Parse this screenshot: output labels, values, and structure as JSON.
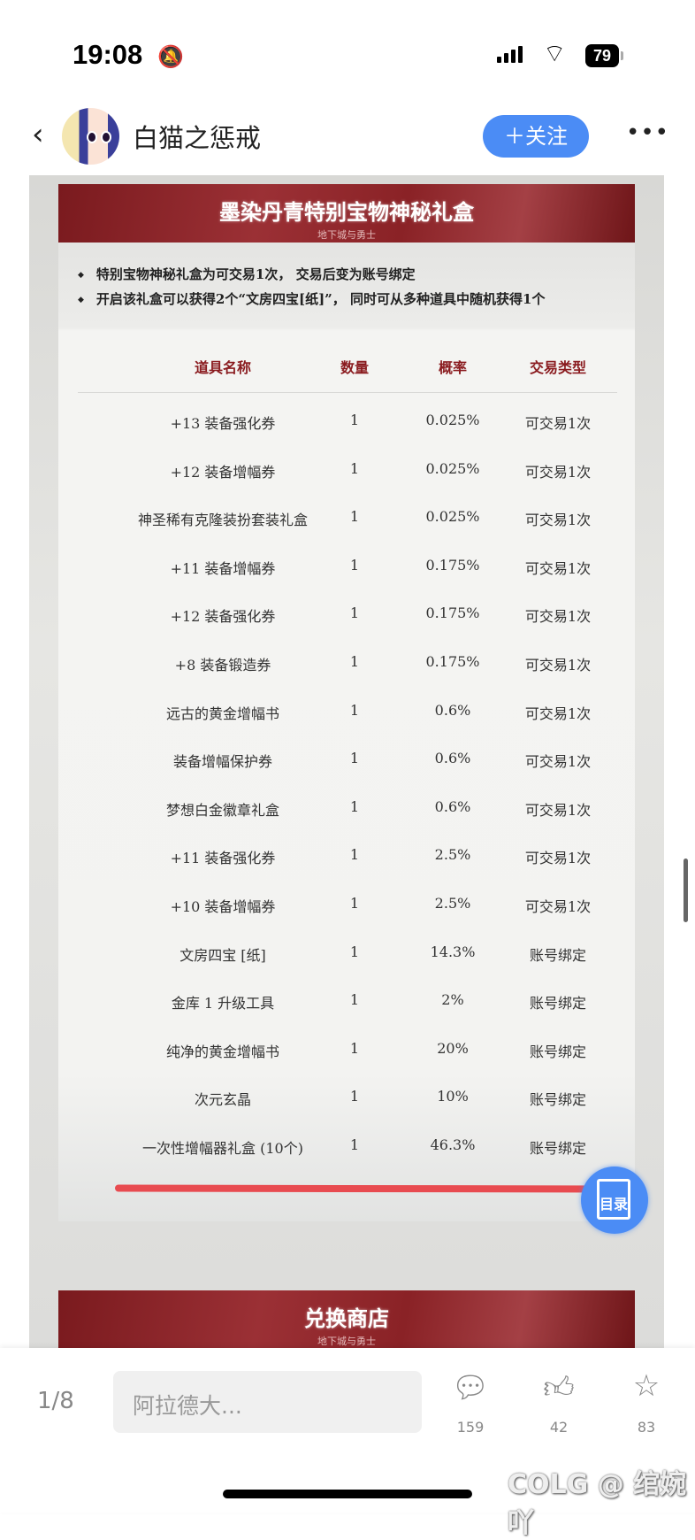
{
  "status_bar": {
    "time": "19:08",
    "battery": "79"
  },
  "header": {
    "author": "白猫之惩戒",
    "follow_label": "＋关注"
  },
  "article": {
    "section1": {
      "title": "墨染丹青特别宝物神秘礼盒",
      "subtitle": "地下城与勇士",
      "bullets": [
        "特别宝物神秘礼盒为可交易1次， 交易后变为账号绑定",
        "开启该礼盒可以获得2个“文房四宝[纸]”， 同时可从多种道具中随机获得1个"
      ]
    },
    "table": {
      "headers": [
        "道具名称",
        "数量",
        "概率",
        "交易类型"
      ],
      "rows": [
        [
          "+13 装备强化券",
          "1",
          "0.025%",
          "可交易1次"
        ],
        [
          "+12 装备增幅券",
          "1",
          "0.025%",
          "可交易1次"
        ],
        [
          "神圣稀有克隆装扮套装礼盒",
          "1",
          "0.025%",
          "可交易1次"
        ],
        [
          "+11 装备增幅券",
          "1",
          "0.175%",
          "可交易1次"
        ],
        [
          "+12 装备强化券",
          "1",
          "0.175%",
          "可交易1次"
        ],
        [
          "+8 装备锻造券",
          "1",
          "0.175%",
          "可交易1次"
        ],
        [
          "远古的黄金增幅书",
          "1",
          "0.6%",
          "可交易1次"
        ],
        [
          "装备增幅保护券",
          "1",
          "0.6%",
          "可交易1次"
        ],
        [
          "梦想白金徽章礼盒",
          "1",
          "0.6%",
          "可交易1次"
        ],
        [
          "+11 装备强化券",
          "1",
          "2.5%",
          "可交易1次"
        ],
        [
          "+10 装备增幅券",
          "1",
          "2.5%",
          "可交易1次"
        ],
        [
          "文房四宝 [纸]",
          "1",
          "14.3%",
          "账号绑定"
        ],
        [
          "金库 1 升级工具",
          "1",
          "2%",
          "账号绑定"
        ],
        [
          "纯净的黄金增幅书",
          "1",
          "20%",
          "账号绑定"
        ],
        [
          "次元玄晶",
          "1",
          "10%",
          "账号绑定"
        ],
        [
          "一次性增幅器礼盒 (10个)",
          "1",
          "46.3%",
          "账号绑定"
        ]
      ]
    },
    "section2": {
      "title": "兑换商店",
      "subtitle": "地下城与勇士"
    },
    "toc_label": "目录"
  },
  "bottom_bar": {
    "page": "1/8",
    "comment_placeholder": "阿拉德大...",
    "comments": "159",
    "likes": "42",
    "favorites": "83"
  },
  "watermark": "COLG @ 绾婉吖",
  "colors": {
    "accent": "#4b8cf5",
    "banner": "#8a2226",
    "header_text": "#8a1b1f",
    "annotation_line": "#e84b50"
  }
}
